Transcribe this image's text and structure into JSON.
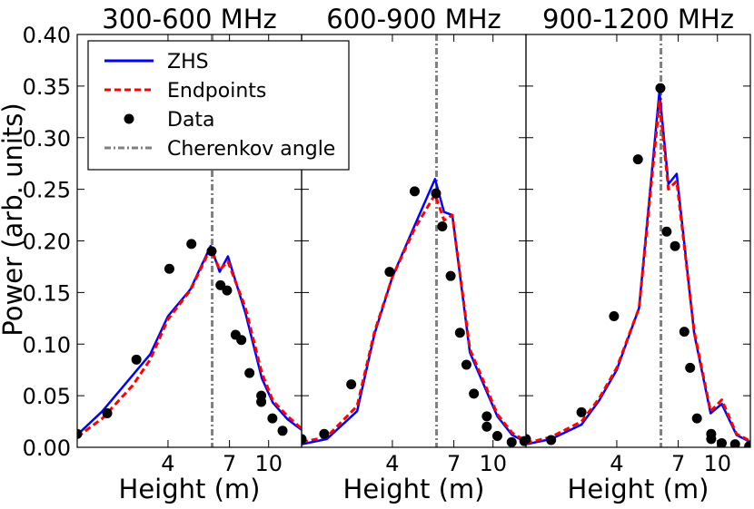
{
  "ylabel": "Power (arb. units)",
  "legend": {
    "placement": "top-left",
    "entries": [
      {
        "label": "ZHS",
        "kind": "line",
        "color": "#0000ff",
        "dash": "solid"
      },
      {
        "label": "Endpoints",
        "kind": "line",
        "color": "#ff0000",
        "dash": "dashed"
      },
      {
        "label": "Data",
        "kind": "marker",
        "color": "#000000"
      },
      {
        "label": "Cherenkov angle",
        "kind": "line",
        "color": "#808080",
        "dash": "dashdot"
      }
    ]
  },
  "chart_data": [
    {
      "type": "line",
      "title": "300-600 MHz",
      "xlabel": "Height (m)",
      "xscale": "log",
      "xlim": [
        1.75,
        13.5
      ],
      "xticks": [
        4,
        7,
        10
      ],
      "ylim": [
        0.0,
        0.4
      ],
      "yticks": [
        0.0,
        0.05,
        0.1,
        0.15,
        0.2,
        0.25,
        0.3,
        0.35,
        0.4
      ],
      "ytick_labels": [
        "0.00",
        "0.05",
        "0.10",
        "0.15",
        "0.20",
        "0.25",
        "0.30",
        "0.35",
        "0.40"
      ],
      "cherenkov_angle_height": 5.98,
      "series": [
        {
          "name": "ZHS",
          "x": [
            1.75,
            2.2,
            2.9,
            3.4,
            4.0,
            4.9,
            5.9,
            6.4,
            6.9,
            8.1,
            9.4,
            10.4,
            11.9,
            13.5
          ],
          "y": [
            0.012,
            0.035,
            0.07,
            0.09,
            0.127,
            0.153,
            0.195,
            0.17,
            0.185,
            0.13,
            0.067,
            0.043,
            0.027,
            0.017
          ]
        },
        {
          "name": "Endpoints",
          "x": [
            1.75,
            2.2,
            2.9,
            3.4,
            4.0,
            4.9,
            5.9,
            6.4,
            6.9,
            8.1,
            9.4,
            10.4,
            11.9,
            13.5
          ],
          "y": [
            0.01,
            0.028,
            0.06,
            0.085,
            0.124,
            0.152,
            0.193,
            0.172,
            0.18,
            0.135,
            0.072,
            0.045,
            0.03,
            0.018
          ]
        },
        {
          "name": "Data",
          "mode": "markers",
          "x": [
            1.75,
            2.3,
            3.0,
            4.05,
            4.95,
            5.95,
            6.45,
            6.85,
            7.4,
            7.8,
            8.4,
            9.35,
            9.35,
            10.35,
            11.35
          ],
          "y": [
            0.013,
            0.033,
            0.085,
            0.173,
            0.197,
            0.19,
            0.157,
            0.152,
            0.109,
            0.104,
            0.072,
            0.05,
            0.044,
            0.028,
            0.016
          ]
        }
      ]
    },
    {
      "type": "line",
      "title": "600-900 MHz",
      "xlabel": "Height (m)",
      "xscale": "log",
      "xlim": [
        1.75,
        13.5
      ],
      "xticks": [
        4,
        7,
        10
      ],
      "ylim": [
        0.0,
        0.4
      ],
      "yticks": [
        0.0,
        0.05,
        0.1,
        0.15,
        0.2,
        0.25,
        0.3,
        0.35,
        0.4
      ],
      "ytick_labels": [],
      "cherenkov_angle_height": 5.98,
      "series": [
        {
          "name": "ZHS",
          "x": [
            1.75,
            2.2,
            2.9,
            3.4,
            4.0,
            4.9,
            5.9,
            6.4,
            6.9,
            8.1,
            9.4,
            10.4,
            11.9,
            13.5
          ],
          "y": [
            0.003,
            0.008,
            0.035,
            0.11,
            0.165,
            0.215,
            0.26,
            0.228,
            0.225,
            0.092,
            0.055,
            0.03,
            0.012,
            0.005
          ]
        },
        {
          "name": "Endpoints",
          "x": [
            1.75,
            2.2,
            2.9,
            3.4,
            4.0,
            4.9,
            5.9,
            6.4,
            6.9,
            8.1,
            9.4,
            10.4,
            11.9,
            13.5
          ],
          "y": [
            0.005,
            0.01,
            0.04,
            0.112,
            0.165,
            0.212,
            0.245,
            0.22,
            0.225,
            0.095,
            0.058,
            0.032,
            0.014,
            0.006
          ]
        },
        {
          "name": "Data",
          "mode": "markers",
          "x": [
            1.75,
            2.15,
            2.75,
            3.9,
            4.9,
            5.95,
            6.3,
            6.8,
            7.4,
            7.85,
            8.4,
            9.45,
            9.45,
            10.4,
            11.85,
            13.3
          ],
          "y": [
            0.008,
            0.013,
            0.061,
            0.17,
            0.248,
            0.246,
            0.214,
            0.166,
            0.111,
            0.08,
            0.052,
            0.03,
            0.02,
            0.011,
            0.005,
            0.006
          ]
        }
      ]
    },
    {
      "type": "line",
      "title": "900-1200 MHz",
      "xlabel": "Height (m)",
      "xscale": "log",
      "xlim": [
        1.75,
        13.5
      ],
      "xticks": [
        4,
        7,
        10
      ],
      "ylim": [
        0.0,
        0.4
      ],
      "yticks": [
        0.0,
        0.05,
        0.1,
        0.15,
        0.2,
        0.25,
        0.3,
        0.35,
        0.4
      ],
      "ytick_labels": [],
      "cherenkov_angle_height": 5.98,
      "series": [
        {
          "name": "ZHS",
          "x": [
            1.75,
            2.2,
            2.9,
            3.4,
            4.0,
            4.9,
            5.9,
            6.4,
            6.9,
            8.1,
            9.4,
            10.4,
            11.9,
            13.5
          ],
          "y": [
            0.003,
            0.008,
            0.022,
            0.045,
            0.075,
            0.135,
            0.345,
            0.255,
            0.265,
            0.11,
            0.033,
            0.042,
            0.012,
            0.005
          ]
        },
        {
          "name": "Endpoints",
          "x": [
            1.75,
            2.2,
            2.9,
            3.4,
            4.0,
            4.9,
            5.9,
            6.4,
            6.9,
            8.1,
            9.4,
            10.4,
            11.9,
            13.5
          ],
          "y": [
            0.004,
            0.01,
            0.025,
            0.047,
            0.077,
            0.135,
            0.335,
            0.25,
            0.258,
            0.112,
            0.035,
            0.046,
            0.013,
            0.006
          ]
        },
        {
          "name": "Data",
          "mode": "markers",
          "x": [
            1.75,
            2.2,
            2.9,
            3.9,
            4.85,
            5.95,
            6.3,
            6.8,
            7.4,
            7.8,
            8.3,
            9.45,
            9.45,
            10.4,
            11.75,
            13.35
          ],
          "y": [
            0.008,
            0.007,
            0.034,
            0.127,
            0.279,
            0.348,
            0.209,
            0.195,
            0.112,
            0.077,
            0.028,
            0.013,
            0.008,
            0.004,
            0.003,
            0.001
          ]
        }
      ]
    }
  ]
}
